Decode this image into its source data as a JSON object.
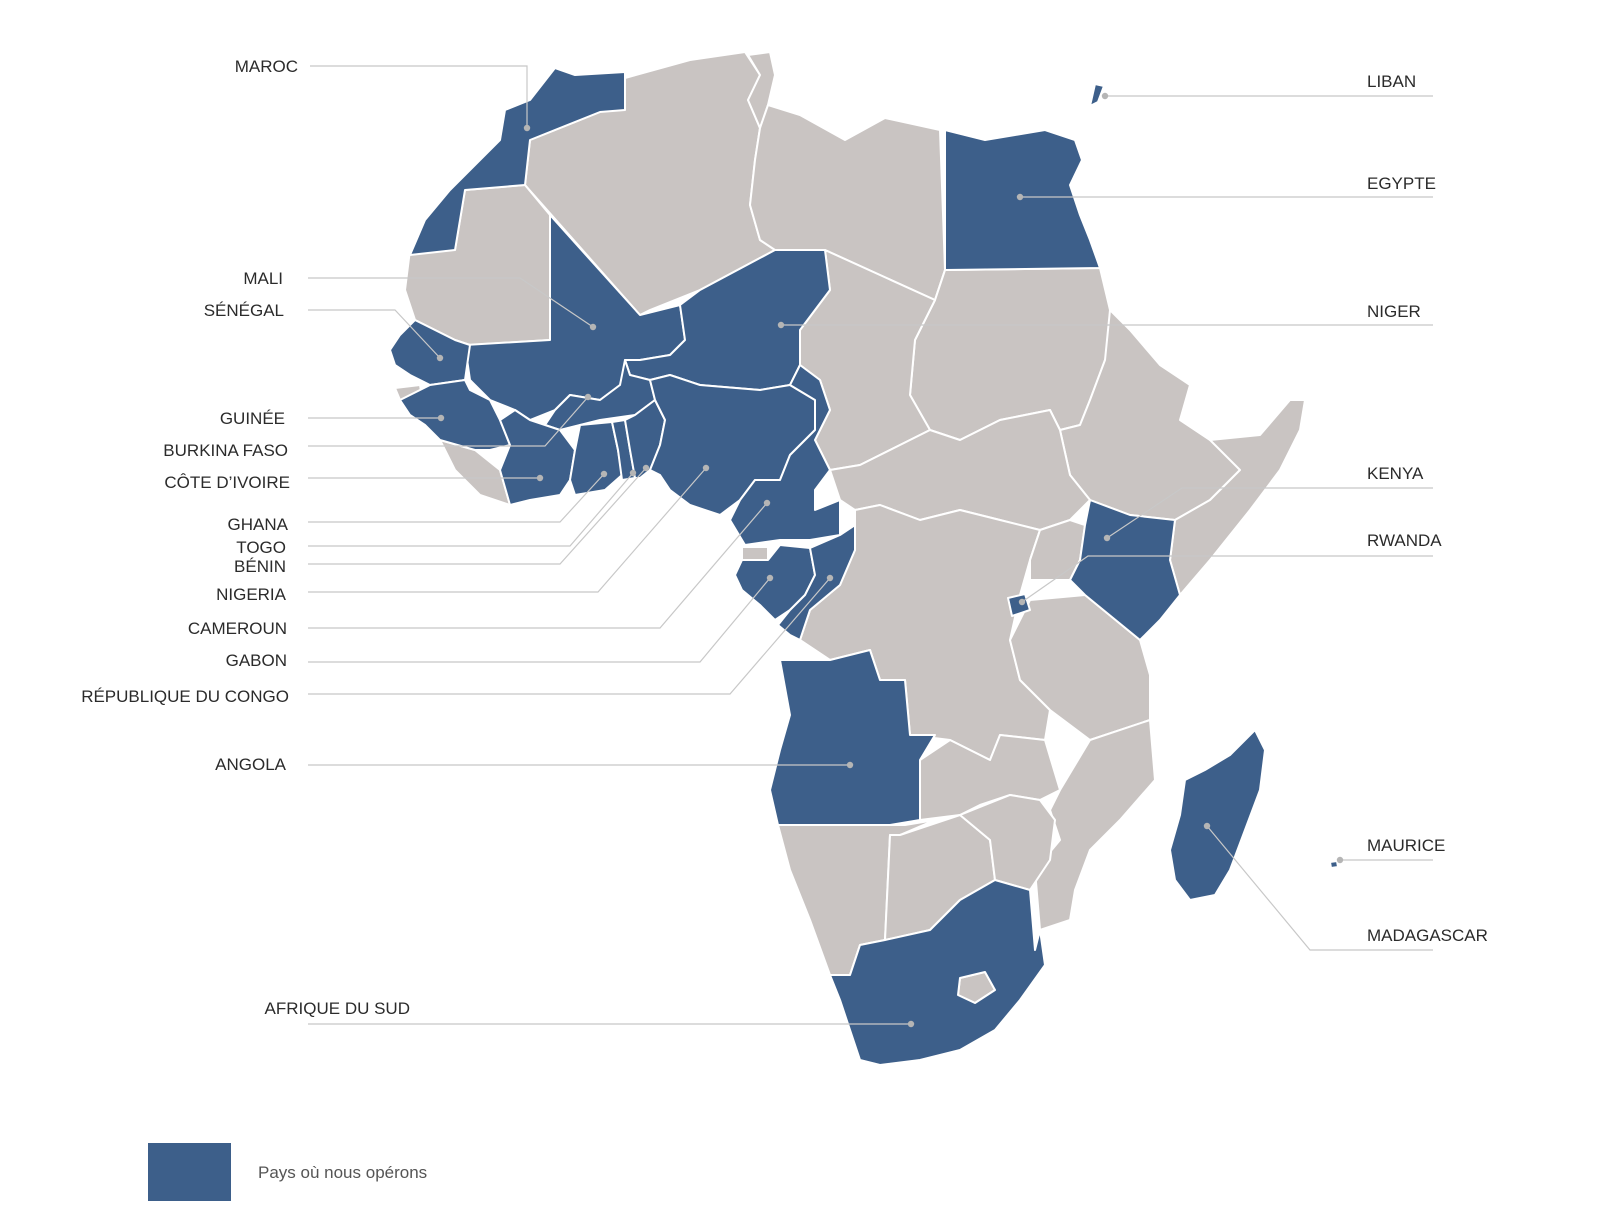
{
  "colors": {
    "operated": "#3d5f8a",
    "other": "#c9c4c2",
    "leader": "#c8c8c8",
    "text": "#2b2b2b"
  },
  "labels": {
    "maroc": "MAROC",
    "mali": "MALI",
    "senegal": "SÉNÉGAL",
    "guinee": "GUINÉE",
    "burkina": "BURKINA FASO",
    "cote": "CÔTE D’IVOIRE",
    "ghana": "GHANA",
    "togo": "TOGO",
    "benin": "BÉNIN",
    "nigeria": "NIGERIA",
    "cameroun": "CAMEROUN",
    "gabon": "GABON",
    "congo": "RÉPUBLIQUE DU CONGO",
    "angola": "ANGOLA",
    "afrique_sud": "AFRIQUE DU SUD",
    "liban": "LIBAN",
    "egypte": "EGYPTE",
    "niger": "NIGER",
    "kenya": "KENYA",
    "rwanda": "RWANDA",
    "maurice": "MAURICE",
    "madagascar": "MADAGASCAR"
  },
  "legend": {
    "label": "Pays où nous opérons"
  }
}
